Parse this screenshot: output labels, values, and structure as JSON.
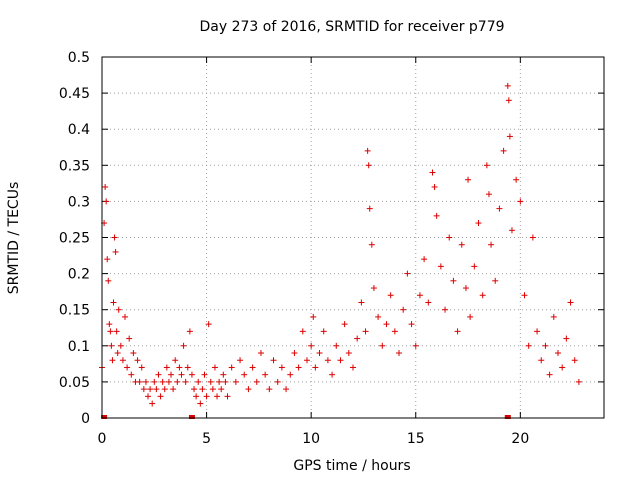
{
  "chart_data": {
    "type": "scatter",
    "title": "Day 273 of 2016, SRMTID for receiver p779",
    "xlabel": "GPS time / hours",
    "ylabel": "SRMTID / TECUs",
    "xlim": [
      0,
      24
    ],
    "ylim": [
      0,
      0.5
    ],
    "xticks": [
      0,
      5,
      10,
      15,
      20
    ],
    "yticks": [
      0,
      0.05,
      0.1,
      0.15,
      0.2,
      0.25,
      0.3,
      0.35,
      0.4,
      0.45,
      0.5
    ],
    "grid": true,
    "marker": "plus",
    "color": "#dd0000",
    "baseline_markers": [
      0.1,
      4.3,
      19.4
    ],
    "series": [
      {
        "name": "p779",
        "points": [
          [
            0.0,
            0.07
          ],
          [
            0.1,
            0.27
          ],
          [
            0.15,
            0.32
          ],
          [
            0.2,
            0.3
          ],
          [
            0.25,
            0.22
          ],
          [
            0.3,
            0.19
          ],
          [
            0.35,
            0.13
          ],
          [
            0.4,
            0.12
          ],
          [
            0.45,
            0.1
          ],
          [
            0.5,
            0.08
          ],
          [
            0.55,
            0.16
          ],
          [
            0.6,
            0.25
          ],
          [
            0.65,
            0.23
          ],
          [
            0.7,
            0.12
          ],
          [
            0.75,
            0.09
          ],
          [
            0.8,
            0.15
          ],
          [
            0.9,
            0.1
          ],
          [
            1.0,
            0.08
          ],
          [
            1.1,
            0.14
          ],
          [
            1.2,
            0.07
          ],
          [
            1.3,
            0.11
          ],
          [
            1.4,
            0.06
          ],
          [
            1.5,
            0.09
          ],
          [
            1.6,
            0.05
          ],
          [
            1.7,
            0.08
          ],
          [
            1.8,
            0.05
          ],
          [
            1.9,
            0.07
          ],
          [
            2.0,
            0.04
          ],
          [
            2.1,
            0.05
          ],
          [
            2.2,
            0.03
          ],
          [
            2.3,
            0.04
          ],
          [
            2.4,
            0.02
          ],
          [
            2.5,
            0.05
          ],
          [
            2.6,
            0.04
          ],
          [
            2.7,
            0.06
          ],
          [
            2.8,
            0.03
          ],
          [
            2.9,
            0.05
          ],
          [
            3.0,
            0.04
          ],
          [
            3.1,
            0.07
          ],
          [
            3.2,
            0.05
          ],
          [
            3.3,
            0.06
          ],
          [
            3.4,
            0.04
          ],
          [
            3.5,
            0.08
          ],
          [
            3.6,
            0.05
          ],
          [
            3.7,
            0.07
          ],
          [
            3.8,
            0.06
          ],
          [
            3.9,
            0.1
          ],
          [
            4.0,
            0.05
          ],
          [
            4.1,
            0.07
          ],
          [
            4.2,
            0.12
          ],
          [
            4.3,
            0.06
          ],
          [
            4.4,
            0.04
          ],
          [
            4.5,
            0.03
          ],
          [
            4.6,
            0.05
          ],
          [
            4.7,
            0.02
          ],
          [
            4.8,
            0.04
          ],
          [
            4.9,
            0.06
          ],
          [
            5.0,
            0.03
          ],
          [
            5.1,
            0.13
          ],
          [
            5.2,
            0.05
          ],
          [
            5.3,
            0.04
          ],
          [
            5.4,
            0.07
          ],
          [
            5.5,
            0.03
          ],
          [
            5.6,
            0.05
          ],
          [
            5.7,
            0.04
          ],
          [
            5.8,
            0.06
          ],
          [
            5.9,
            0.05
          ],
          [
            6.0,
            0.03
          ],
          [
            6.2,
            0.07
          ],
          [
            6.4,
            0.05
          ],
          [
            6.6,
            0.08
          ],
          [
            6.8,
            0.06
          ],
          [
            7.0,
            0.04
          ],
          [
            7.2,
            0.07
          ],
          [
            7.4,
            0.05
          ],
          [
            7.6,
            0.09
          ],
          [
            7.8,
            0.06
          ],
          [
            8.0,
            0.04
          ],
          [
            8.2,
            0.08
          ],
          [
            8.4,
            0.05
          ],
          [
            8.6,
            0.07
          ],
          [
            8.8,
            0.04
          ],
          [
            9.0,
            0.06
          ],
          [
            9.2,
            0.09
          ],
          [
            9.4,
            0.07
          ],
          [
            9.6,
            0.12
          ],
          [
            9.8,
            0.08
          ],
          [
            10.0,
            0.1
          ],
          [
            10.1,
            0.14
          ],
          [
            10.2,
            0.07
          ],
          [
            10.4,
            0.09
          ],
          [
            10.6,
            0.12
          ],
          [
            10.8,
            0.08
          ],
          [
            11.0,
            0.06
          ],
          [
            11.2,
            0.1
          ],
          [
            11.4,
            0.08
          ],
          [
            11.6,
            0.13
          ],
          [
            11.8,
            0.09
          ],
          [
            12.0,
            0.07
          ],
          [
            12.2,
            0.11
          ],
          [
            12.4,
            0.16
          ],
          [
            12.6,
            0.12
          ],
          [
            12.7,
            0.37
          ],
          [
            12.75,
            0.35
          ],
          [
            12.8,
            0.29
          ],
          [
            12.9,
            0.24
          ],
          [
            13.0,
            0.18
          ],
          [
            13.2,
            0.14
          ],
          [
            13.4,
            0.1
          ],
          [
            13.6,
            0.13
          ],
          [
            13.8,
            0.17
          ],
          [
            14.0,
            0.12
          ],
          [
            14.2,
            0.09
          ],
          [
            14.4,
            0.15
          ],
          [
            14.6,
            0.2
          ],
          [
            14.8,
            0.13
          ],
          [
            15.0,
            0.1
          ],
          [
            15.2,
            0.17
          ],
          [
            15.4,
            0.22
          ],
          [
            15.6,
            0.16
          ],
          [
            15.8,
            0.34
          ],
          [
            15.9,
            0.32
          ],
          [
            16.0,
            0.28
          ],
          [
            16.2,
            0.21
          ],
          [
            16.4,
            0.15
          ],
          [
            16.6,
            0.25
          ],
          [
            16.8,
            0.19
          ],
          [
            17.0,
            0.12
          ],
          [
            17.2,
            0.24
          ],
          [
            17.4,
            0.18
          ],
          [
            17.5,
            0.33
          ],
          [
            17.6,
            0.14
          ],
          [
            17.8,
            0.21
          ],
          [
            18.0,
            0.27
          ],
          [
            18.2,
            0.17
          ],
          [
            18.4,
            0.35
          ],
          [
            18.5,
            0.31
          ],
          [
            18.6,
            0.24
          ],
          [
            18.8,
            0.19
          ],
          [
            19.0,
            0.29
          ],
          [
            19.2,
            0.37
          ],
          [
            19.4,
            0.46
          ],
          [
            19.45,
            0.44
          ],
          [
            19.5,
            0.39
          ],
          [
            19.6,
            0.26
          ],
          [
            19.8,
            0.33
          ],
          [
            20.0,
            0.3
          ],
          [
            20.2,
            0.17
          ],
          [
            20.4,
            0.1
          ],
          [
            20.6,
            0.25
          ],
          [
            20.8,
            0.12
          ],
          [
            21.0,
            0.08
          ],
          [
            21.2,
            0.1
          ],
          [
            21.4,
            0.06
          ],
          [
            21.6,
            0.14
          ],
          [
            21.8,
            0.09
          ],
          [
            22.0,
            0.07
          ],
          [
            22.2,
            0.11
          ],
          [
            22.4,
            0.16
          ],
          [
            22.6,
            0.08
          ],
          [
            22.8,
            0.05
          ]
        ]
      }
    ]
  }
}
